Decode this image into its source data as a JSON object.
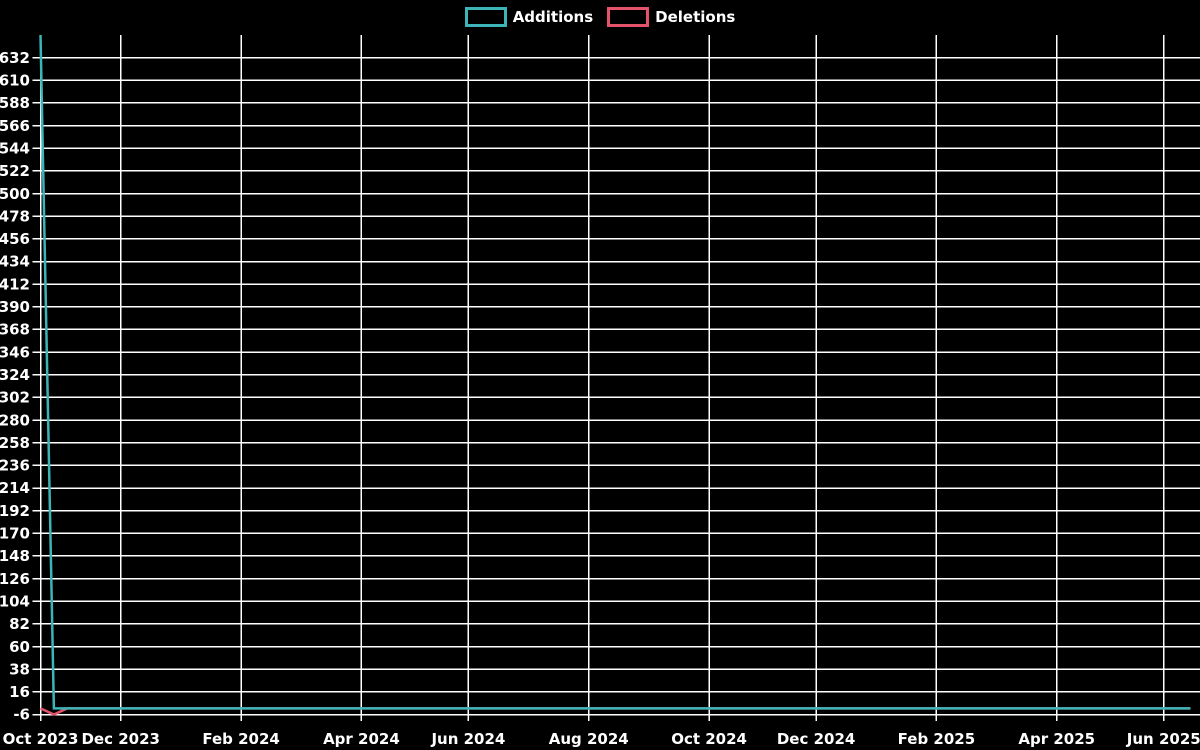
{
  "chart_data": {
    "type": "line",
    "title": "",
    "theme": {
      "background": "#000000",
      "grid_color": "#ffffff",
      "text_color": "#ffffff"
    },
    "legend_position": "top-center",
    "x_axis": {
      "kind": "weekly-time",
      "week0_date": "2023-10-22",
      "last_week_index": 86,
      "last_week_date": "2025-06-15",
      "ticks": [
        {
          "label": "Oct 2023",
          "week": 0
        },
        {
          "label": "Dec 2023",
          "week": 6
        },
        {
          "label": "Feb 2024",
          "week": 15
        },
        {
          "label": "Apr 2024",
          "week": 24
        },
        {
          "label": "Jun 2024",
          "week": 32
        },
        {
          "label": "Aug 2024",
          "week": 41
        },
        {
          "label": "Oct 2024",
          "week": 50
        },
        {
          "label": "Dec 2024",
          "week": 58
        },
        {
          "label": "Feb 2025",
          "week": 67
        },
        {
          "label": "Apr 2025",
          "week": 76
        },
        {
          "label": "Jun 2025",
          "week": 84
        }
      ]
    },
    "y_axis": {
      "min": -6,
      "max": 654,
      "tick_step": 22,
      "tick_labels": [
        "632",
        "610",
        "588",
        "566",
        "544",
        "522",
        "500",
        "478",
        "456",
        "434",
        "412",
        "390",
        "368",
        "346",
        "324",
        "302",
        "280",
        "258",
        "236",
        "214",
        "192",
        "170",
        "148",
        "126",
        "104",
        "82",
        "60",
        "38",
        "16",
        "-6"
      ]
    },
    "series": [
      {
        "name": "Additions",
        "color": "#3cb4b8",
        "points": [
          [
            0,
            654
          ],
          [
            1,
            0
          ],
          [
            86,
            0
          ]
        ]
      },
      {
        "name": "Deletions",
        "color": "#e5536b",
        "points": [
          [
            0,
            0
          ],
          [
            1,
            -6
          ],
          [
            2,
            0
          ],
          [
            86,
            0
          ]
        ]
      }
    ]
  }
}
